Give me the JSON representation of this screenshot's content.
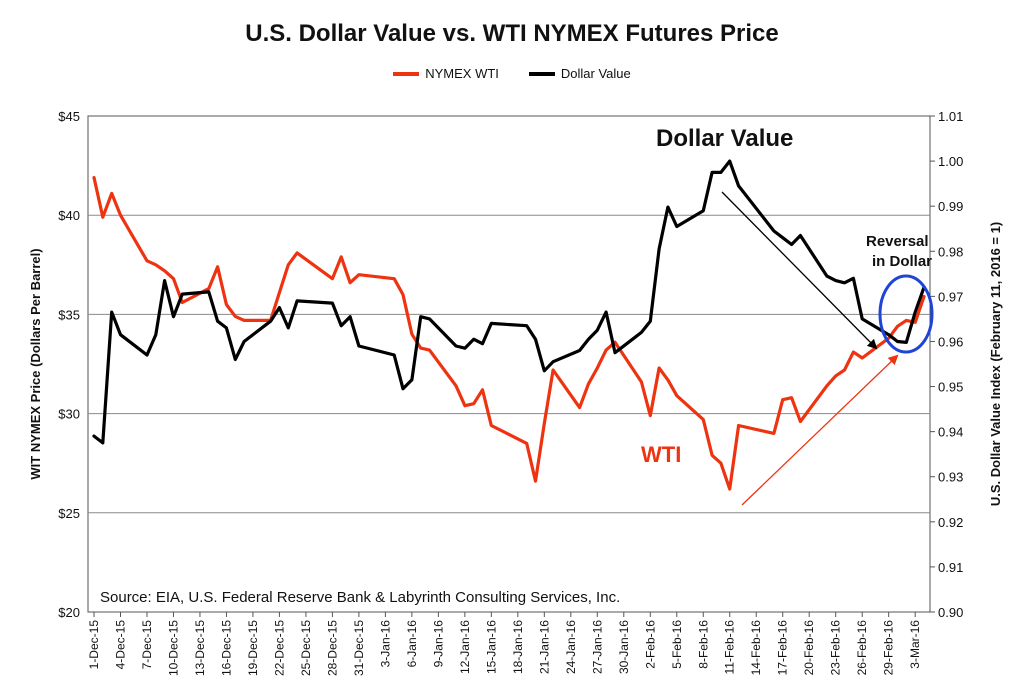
{
  "chart_data": {
    "type": "line",
    "title": "U.S. Dollar Value vs. WTI NYMEX Futures Price",
    "legend": {
      "placement": "top",
      "entries": [
        "NYMEX WTI",
        "Dollar Value"
      ]
    },
    "ylabel": "WIT NYMEX Price (Dollars Per Barrel)",
    "y2label": "U.S. Dollar Value Index (February 11, 2016 = 1)",
    "ylim": [
      20,
      45
    ],
    "y2lim": [
      0.9,
      1.01
    ],
    "yticks": [
      "$20",
      "$25",
      "$30",
      "$35",
      "$40",
      "$45"
    ],
    "y2ticks": [
      "0.90",
      "0.91",
      "0.92",
      "0.93",
      "0.94",
      "0.95",
      "0.96",
      "0.97",
      "0.98",
      "0.99",
      "1.00",
      "1.01"
    ],
    "grid": true,
    "xticks": [
      "1-Dec-15",
      "4-Dec-15",
      "7-Dec-15",
      "10-Dec-15",
      "13-Dec-15",
      "16-Dec-15",
      "19-Dec-15",
      "22-Dec-15",
      "25-Dec-15",
      "28-Dec-15",
      "31-Dec-15",
      "3-Jan-16",
      "6-Jan-16",
      "9-Jan-16",
      "12-Jan-16",
      "15-Jan-16",
      "18-Jan-16",
      "21-Jan-16",
      "24-Jan-16",
      "27-Jan-16",
      "30-Jan-16",
      "2-Feb-16",
      "5-Feb-16",
      "8-Feb-16",
      "11-Feb-16",
      "14-Feb-16",
      "17-Feb-16",
      "20-Feb-16",
      "23-Feb-16",
      "26-Feb-16",
      "29-Feb-16",
      "3-Mar-16"
    ],
    "series": [
      {
        "name": "NYMEX WTI",
        "color": "#ee3311",
        "axis": "left",
        "points": [
          [
            "1-Dec-15",
            41.9
          ],
          [
            "2-Dec-15",
            39.9
          ],
          [
            "3-Dec-15",
            41.1
          ],
          [
            "4-Dec-15",
            40.0
          ],
          [
            "7-Dec-15",
            37.7
          ],
          [
            "8-Dec-15",
            37.5
          ],
          [
            "9-Dec-15",
            37.2
          ],
          [
            "10-Dec-15",
            36.8
          ],
          [
            "11-Dec-15",
            35.6
          ],
          [
            "14-Dec-15",
            36.3
          ],
          [
            "15-Dec-15",
            37.4
          ],
          [
            "16-Dec-15",
            35.5
          ],
          [
            "17-Dec-15",
            34.9
          ],
          [
            "18-Dec-15",
            34.7
          ],
          [
            "21-Dec-15",
            34.7
          ],
          [
            "22-Dec-15",
            36.1
          ],
          [
            "23-Dec-15",
            37.5
          ],
          [
            "24-Dec-15",
            38.1
          ],
          [
            "28-Dec-15",
            36.8
          ],
          [
            "29-Dec-15",
            37.9
          ],
          [
            "30-Dec-15",
            36.6
          ],
          [
            "31-Dec-15",
            37.0
          ],
          [
            "4-Jan-16",
            36.8
          ],
          [
            "5-Jan-16",
            36.0
          ],
          [
            "6-Jan-16",
            34.0
          ],
          [
            "7-Jan-16",
            33.3
          ],
          [
            "8-Jan-16",
            33.2
          ],
          [
            "11-Jan-16",
            31.4
          ],
          [
            "12-Jan-16",
            30.4
          ],
          [
            "13-Jan-16",
            30.5
          ],
          [
            "14-Jan-16",
            31.2
          ],
          [
            "15-Jan-16",
            29.4
          ],
          [
            "19-Jan-16",
            28.5
          ],
          [
            "20-Jan-16",
            26.6
          ],
          [
            "21-Jan-16",
            29.5
          ],
          [
            "22-Jan-16",
            32.2
          ],
          [
            "25-Jan-16",
            30.3
          ],
          [
            "26-Jan-16",
            31.5
          ],
          [
            "27-Jan-16",
            32.3
          ],
          [
            "28-Jan-16",
            33.2
          ],
          [
            "29-Jan-16",
            33.6
          ],
          [
            "1-Feb-16",
            31.6
          ],
          [
            "2-Feb-16",
            29.9
          ],
          [
            "3-Feb-16",
            32.3
          ],
          [
            "4-Feb-16",
            31.7
          ],
          [
            "5-Feb-16",
            30.9
          ],
          [
            "8-Feb-16",
            29.7
          ],
          [
            "9-Feb-16",
            27.9
          ],
          [
            "10-Feb-16",
            27.5
          ],
          [
            "11-Feb-16",
            26.2
          ],
          [
            "12-Feb-16",
            29.4
          ],
          [
            "16-Feb-16",
            29.0
          ],
          [
            "17-Feb-16",
            30.7
          ],
          [
            "18-Feb-16",
            30.8
          ],
          [
            "19-Feb-16",
            29.6
          ],
          [
            "22-Feb-16",
            31.4
          ],
          [
            "23-Feb-16",
            31.9
          ],
          [
            "24-Feb-16",
            32.2
          ],
          [
            "25-Feb-16",
            33.1
          ],
          [
            "26-Feb-16",
            32.8
          ],
          [
            "29-Feb-16",
            33.8
          ],
          [
            "1-Mar-16",
            34.4
          ],
          [
            "2-Mar-16",
            34.7
          ],
          [
            "3-Mar-16",
            34.6
          ],
          [
            "4-Mar-16",
            35.9
          ]
        ]
      },
      {
        "name": "Dollar Value",
        "color": "#000000",
        "axis": "right",
        "points": [
          [
            "1-Dec-15",
            0.939
          ],
          [
            "2-Dec-15",
            0.9375
          ],
          [
            "3-Dec-15",
            0.9665
          ],
          [
            "4-Dec-15",
            0.9615
          ],
          [
            "7-Dec-15",
            0.957
          ],
          [
            "8-Dec-15",
            0.9615
          ],
          [
            "9-Dec-15",
            0.9735
          ],
          [
            "10-Dec-15",
            0.9655
          ],
          [
            "11-Dec-15",
            0.9705
          ],
          [
            "14-Dec-15",
            0.971
          ],
          [
            "15-Dec-15",
            0.9645
          ],
          [
            "16-Dec-15",
            0.963
          ],
          [
            "17-Dec-15",
            0.956
          ],
          [
            "18-Dec-15",
            0.96
          ],
          [
            "21-Dec-15",
            0.9645
          ],
          [
            "22-Dec-15",
            0.9675
          ],
          [
            "23-Dec-15",
            0.963
          ],
          [
            "24-Dec-15",
            0.969
          ],
          [
            "28-Dec-15",
            0.9685
          ],
          [
            "29-Dec-15",
            0.9635
          ],
          [
            "30-Dec-15",
            0.9655
          ],
          [
            "31-Dec-15",
            0.959
          ],
          [
            "4-Jan-16",
            0.957
          ],
          [
            "5-Jan-16",
            0.9495
          ],
          [
            "6-Jan-16",
            0.9515
          ],
          [
            "7-Jan-16",
            0.9655
          ],
          [
            "8-Jan-16",
            0.965
          ],
          [
            "11-Jan-16",
            0.959
          ],
          [
            "12-Jan-16",
            0.9585
          ],
          [
            "13-Jan-16",
            0.9605
          ],
          [
            "14-Jan-16",
            0.9595
          ],
          [
            "15-Jan-16",
            0.964
          ],
          [
            "19-Jan-16",
            0.9635
          ],
          [
            "20-Jan-16",
            0.9605
          ],
          [
            "21-Jan-16",
            0.9535
          ],
          [
            "22-Jan-16",
            0.9555
          ],
          [
            "25-Jan-16",
            0.958
          ],
          [
            "26-Jan-16",
            0.9605
          ],
          [
            "27-Jan-16",
            0.9625
          ],
          [
            "28-Jan-16",
            0.9665
          ],
          [
            "29-Jan-16",
            0.9575
          ],
          [
            "1-Feb-16",
            0.962
          ],
          [
            "2-Feb-16",
            0.9645
          ],
          [
            "3-Feb-16",
            0.9805
          ],
          [
            "4-Feb-16",
            0.9898
          ],
          [
            "5-Feb-16",
            0.9855
          ],
          [
            "8-Feb-16",
            0.989
          ],
          [
            "9-Feb-16",
            0.9975
          ],
          [
            "10-Feb-16",
            0.9975
          ],
          [
            "11-Feb-16",
            1.0
          ],
          [
            "12-Feb-16",
            0.9945
          ],
          [
            "16-Feb-16",
            0.9845
          ],
          [
            "17-Feb-16",
            0.983
          ],
          [
            "18-Feb-16",
            0.9815
          ],
          [
            "19-Feb-16",
            0.9835
          ],
          [
            "22-Feb-16",
            0.9745
          ],
          [
            "23-Feb-16",
            0.9735
          ],
          [
            "24-Feb-16",
            0.973
          ],
          [
            "25-Feb-16",
            0.974
          ],
          [
            "26-Feb-16",
            0.965
          ],
          [
            "29-Feb-16",
            0.9615
          ],
          [
            "1-Mar-16",
            0.96
          ],
          [
            "2-Mar-16",
            0.9598
          ],
          [
            "3-Mar-16",
            0.9665
          ],
          [
            "4-Mar-16",
            0.972
          ]
        ]
      }
    ],
    "annotations": {
      "dollar_label": "Dollar Value",
      "wti_label": "WTI",
      "reversal_line1": "Reversal",
      "reversal_line2": "in Dollar",
      "source": "Source: EIA, U.S. Federal Reserve Bank & Labyrinth Consulting Services, Inc."
    }
  }
}
